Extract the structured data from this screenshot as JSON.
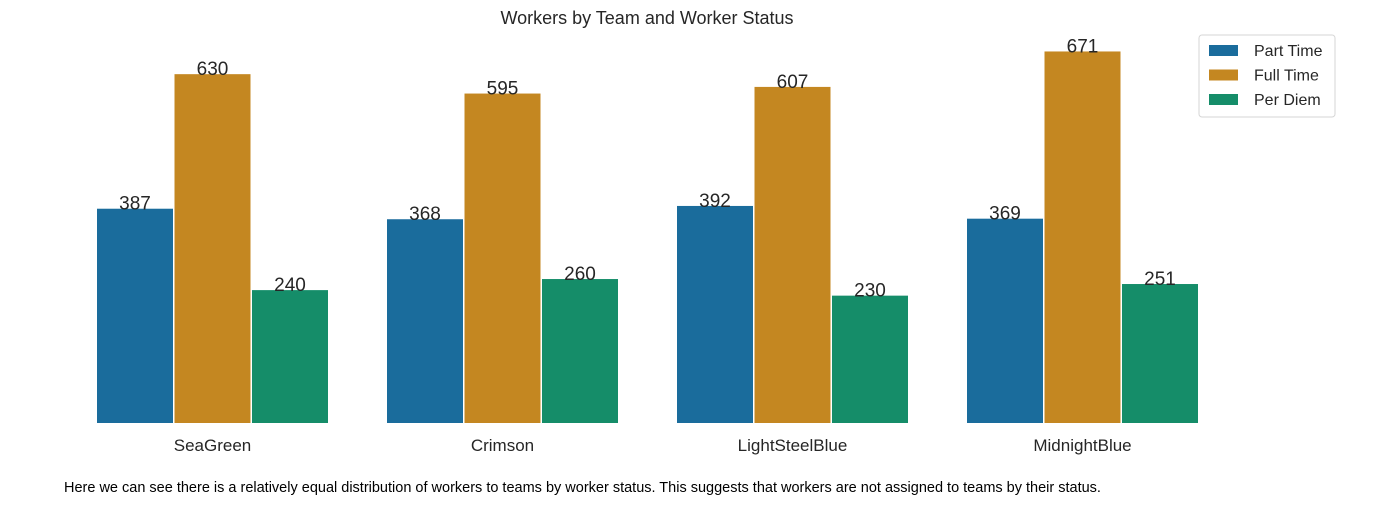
{
  "chart_data": {
    "type": "bar",
    "title": "Workers by Team and Worker Status",
    "categories": [
      "SeaGreen",
      "Crimson",
      "LightSteelBlue",
      "MidnightBlue"
    ],
    "series": [
      {
        "name": "Part Time",
        "values": [
          387,
          368,
          392,
          369
        ],
        "color": "#1a6c9c"
      },
      {
        "name": "Full Time",
        "values": [
          630,
          595,
          607,
          671
        ],
        "color": "#c48721"
      },
      {
        "name": "Per Diem",
        "values": [
          240,
          260,
          230,
          251
        ],
        "color": "#158d69"
      }
    ],
    "ylim": [
      0,
      700
    ],
    "grid": false,
    "y_axis_visible": false,
    "legend_position": "top-right"
  },
  "caption": "Here we can see there is a relatively equal distribution of workers to teams by worker status. This suggests that workers are not assigned to teams by their status."
}
